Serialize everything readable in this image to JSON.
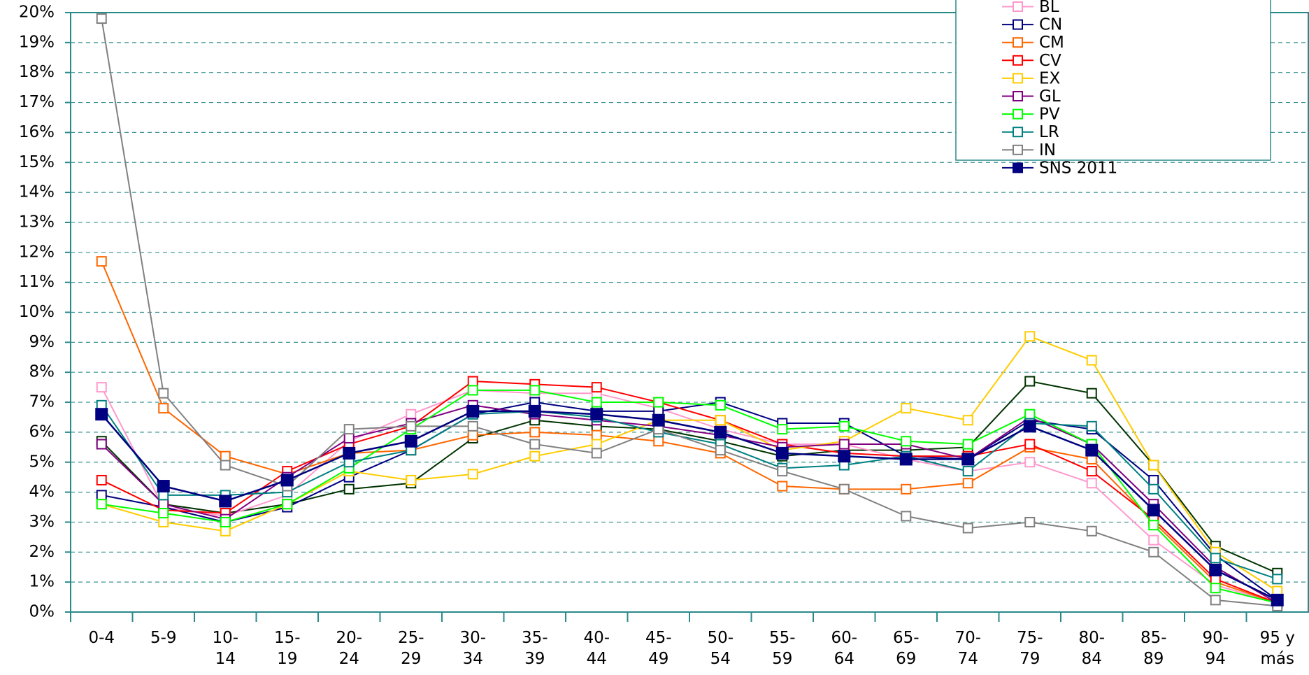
{
  "chart_data": {
    "type": "line",
    "categories": [
      "0-4",
      "5-9",
      "10- 14",
      "15- 19",
      "20- 24",
      "25- 29",
      "30- 34",
      "35- 39",
      "40- 44",
      "45- 49",
      "50- 54",
      "55- 59",
      "60- 64",
      "65- 69",
      "70- 74",
      "75- 79",
      "80- 84",
      "85- 89",
      "90- 94",
      "95 y más"
    ],
    "ylim": [
      0,
      20
    ],
    "yticks": [
      {
        "value": 0,
        "label": "0%"
      },
      {
        "value": 1,
        "label": "1%"
      },
      {
        "value": 2,
        "label": "2%"
      },
      {
        "value": 3,
        "label": "3%"
      },
      {
        "value": 4,
        "label": "4%"
      },
      {
        "value": 5,
        "label": "5%"
      },
      {
        "value": 6,
        "label": "6%"
      },
      {
        "value": 7,
        "label": "7%"
      },
      {
        "value": 8,
        "label": "8%"
      },
      {
        "value": 9,
        "label": "9%"
      },
      {
        "value": 10,
        "label": "10%"
      },
      {
        "value": 11,
        "label": "11%"
      },
      {
        "value": 12,
        "label": "12%"
      },
      {
        "value": 13,
        "label": "13%"
      },
      {
        "value": 14,
        "label": "14%"
      },
      {
        "value": 15,
        "label": "15%"
      },
      {
        "value": 16,
        "label": "16%"
      },
      {
        "value": 17,
        "label": "17%"
      },
      {
        "value": 18,
        "label": "18%"
      },
      {
        "value": 19,
        "label": "19%"
      },
      {
        "value": 20,
        "label": "20%"
      }
    ],
    "grid": true,
    "legend": "top-right",
    "series": [
      {
        "name": null,
        "color": "#003300",
        "values": [
          5.7,
          3.6,
          3.3,
          3.6,
          4.1,
          4.3,
          5.8,
          6.4,
          6.2,
          6.1,
          5.7,
          5.2,
          5.4,
          5.4,
          5.5,
          7.7,
          7.3,
          4.9,
          2.2,
          1.3
        ]
      },
      {
        "name": "BL",
        "color": "#ff99cc",
        "values": [
          7.5,
          3.5,
          3.2,
          3.9,
          5.7,
          6.6,
          7.4,
          7.3,
          7.3,
          6.8,
          6.1,
          5.6,
          5.6,
          5.1,
          4.7,
          5.0,
          4.3,
          2.4,
          0.9,
          0.3
        ]
      },
      {
        "name": "CN",
        "color": "#000080",
        "values": [
          3.9,
          3.5,
          3.0,
          3.5,
          4.5,
          5.4,
          6.6,
          7.0,
          6.7,
          6.7,
          7.0,
          6.3,
          6.3,
          5.2,
          5.1,
          6.4,
          6.1,
          4.4,
          1.9,
          0.4
        ]
      },
      {
        "name": "CM",
        "color": "#ff6600",
        "values": [
          11.7,
          6.8,
          5.2,
          4.6,
          5.3,
          5.4,
          5.9,
          6.0,
          5.9,
          5.7,
          5.3,
          4.2,
          4.1,
          4.1,
          4.3,
          5.5,
          5.1,
          3.0,
          1.0,
          0.3
        ]
      },
      {
        "name": "CV",
        "color": "#ff0000",
        "values": [
          4.4,
          3.4,
          3.3,
          4.7,
          5.6,
          6.2,
          7.7,
          7.6,
          7.5,
          7.0,
          6.4,
          5.6,
          5.3,
          5.2,
          5.2,
          5.6,
          4.7,
          3.1,
          1.1,
          0.3
        ]
      },
      {
        "name": "EX",
        "color": "#ffcc00",
        "values": [
          3.6,
          3.0,
          2.7,
          3.6,
          4.7,
          4.4,
          4.6,
          5.2,
          5.6,
          6.4,
          6.4,
          5.4,
          5.7,
          6.8,
          6.4,
          9.2,
          8.4,
          4.9,
          2.0,
          0.7
        ]
      },
      {
        "name": "GL",
        "color": "#800080",
        "values": [
          5.6,
          3.6,
          3.1,
          4.5,
          5.8,
          6.3,
          6.9,
          6.6,
          6.4,
          6.2,
          5.9,
          5.5,
          5.6,
          5.6,
          5.1,
          6.5,
          5.6,
          3.6,
          1.5,
          0.3
        ]
      },
      {
        "name": "PV",
        "color": "#00ff00",
        "values": [
          3.6,
          3.3,
          3.0,
          3.6,
          4.8,
          6.1,
          7.4,
          7.4,
          7.0,
          7.0,
          6.9,
          6.1,
          6.2,
          5.7,
          5.6,
          6.6,
          5.6,
          2.9,
          0.8,
          0.3
        ]
      },
      {
        "name": "LR",
        "color": "#008080",
        "values": [
          6.9,
          3.9,
          3.9,
          4.0,
          5.0,
          5.4,
          6.6,
          6.7,
          6.5,
          6.0,
          5.6,
          4.8,
          4.9,
          5.2,
          4.7,
          6.3,
          6.2,
          4.1,
          1.8,
          1.1
        ]
      },
      {
        "name": "IN",
        "color": "#808080",
        "values": [
          19.8,
          7.3,
          4.9,
          4.2,
          6.1,
          6.2,
          6.2,
          5.6,
          5.3,
          6.1,
          5.4,
          4.7,
          4.1,
          3.2,
          2.8,
          3.0,
          2.7,
          2.0,
          0.4,
          0.2
        ]
      },
      {
        "name": "SNS 2011",
        "color": "#000080",
        "filled": true,
        "values": [
          6.6,
          4.2,
          3.7,
          4.4,
          5.3,
          5.7,
          6.7,
          6.7,
          6.6,
          6.4,
          6.0,
          5.3,
          5.2,
          5.1,
          5.1,
          6.2,
          5.4,
          3.4,
          1.4,
          0.4
        ]
      }
    ]
  }
}
